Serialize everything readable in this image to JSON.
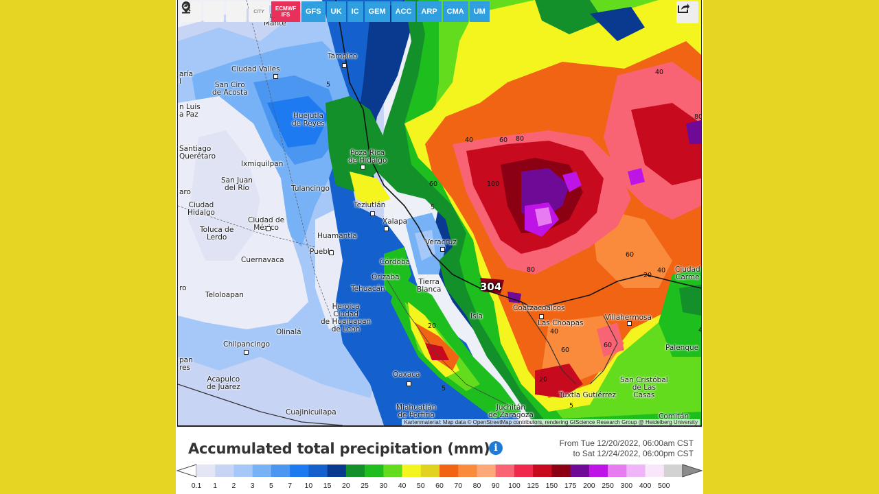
{
  "toolbar": {
    "icons": [
      "refresh-icon",
      "location-pin-icon",
      "zoom-out-icon"
    ],
    "city_toggle": "CITY",
    "models": [
      {
        "label": "ECMWF IFS",
        "active": true
      },
      {
        "label": "GFS"
      },
      {
        "label": "UK"
      },
      {
        "label": "IC"
      },
      {
        "label": "GEM"
      },
      {
        "label": "ACC"
      },
      {
        "label": "ARP"
      },
      {
        "label": "CMA"
      },
      {
        "label": "UM"
      }
    ],
    "share_icon": "share-icon"
  },
  "map": {
    "peak_value": "304",
    "attribution": "Kartenmaterial: Map data © OpenStreetMap contributors, rendering GIScience Research Group @ Heidelberg University",
    "cities": [
      {
        "name": "Ciudad\nMante"
      },
      {
        "name": "Tampico"
      },
      {
        "name": "Ciudad Valles"
      },
      {
        "name": "San Ciro\nde Acosta"
      },
      {
        "name": "n Luis\na Paz"
      },
      {
        "name": "Huejutla\nde Reyes"
      },
      {
        "name": "Santiago\nQuerétaro"
      },
      {
        "name": "Ixmiquilpan"
      },
      {
        "name": "Poza Rica\nde Hidalgo"
      },
      {
        "name": "San Juan\ndel Río"
      },
      {
        "name": "Tulancingo"
      },
      {
        "name": "Teziutlán"
      },
      {
        "name": "Ciudad\nHidalgo"
      },
      {
        "name": "Ciudad de\nMéxico"
      },
      {
        "name": "Xalapa"
      },
      {
        "name": "Toluca de\nLerdo"
      },
      {
        "name": "Huamantla"
      },
      {
        "name": "Veracruz"
      },
      {
        "name": "Puebla"
      },
      {
        "name": "Cuernavaca"
      },
      {
        "name": "Córdoba"
      },
      {
        "name": "Orizaba"
      },
      {
        "name": "Tierra\nBlanca"
      },
      {
        "name": "Tehuacán"
      },
      {
        "name": "Teloloapan"
      },
      {
        "name": "Heroica\nCiudad\nde Huajuapan\nde León"
      },
      {
        "name": "Isla"
      },
      {
        "name": "Coatzacoalcos"
      },
      {
        "name": "Las Choapas"
      },
      {
        "name": "Villahermosa"
      },
      {
        "name": "Ciudad\nCarme"
      },
      {
        "name": "Olinalá"
      },
      {
        "name": "Chilpancingo"
      },
      {
        "name": "Palenque"
      },
      {
        "name": "Oaxaca"
      },
      {
        "name": "Acapulco\nde Juárez"
      },
      {
        "name": "San Cristóbal\nde Las\nCasas"
      },
      {
        "name": "Tuxtla Gutiérrez"
      },
      {
        "name": "Juchitán\nde Zaragoza"
      },
      {
        "name": "Miahuatlán\nde Porfirio"
      },
      {
        "name": "Cuajinicuilapa"
      },
      {
        "name": "Comitán"
      },
      {
        "name": "pan\nres"
      },
      {
        "name": "aría\nl"
      },
      {
        "name": "aro"
      },
      {
        "name": "ro"
      }
    ],
    "contour_labels": [
      "5",
      "40",
      "60",
      "80",
      "100",
      "60",
      "60",
      "80",
      "40",
      "80",
      "20",
      "40",
      "60",
      "20",
      "5",
      "40",
      "60",
      "5",
      "20",
      "5",
      "40"
    ]
  },
  "legend": {
    "title": "Accumulated total precipitation (mm)",
    "info_icon": "info-icon",
    "period_from": "From Tue 12/20/2022, 06:00am CST",
    "period_to": "to Sat 12/24/2022, 06:00pm CST",
    "scale_colors": [
      "#e4e6f5",
      "#c8d4f4",
      "#a6c8f8",
      "#78b2f6",
      "#4a96f0",
      "#1e7af0",
      "#1460cc",
      "#0a3a90",
      "#14902a",
      "#1ebe1e",
      "#64dc1e",
      "#f4f41e",
      "#e0d21e",
      "#f06414",
      "#fa8a3c",
      "#fca878",
      "#f86474",
      "#f0284c",
      "#c80a1e",
      "#8c0014",
      "#6e0a96",
      "#be14e6",
      "#e67cf0",
      "#f0b4f8",
      "#fae6fa",
      "#d2d2d2"
    ],
    "scale_ticks": [
      "0.1",
      "1",
      "2",
      "3",
      "5",
      "7",
      "10",
      "15",
      "20",
      "25",
      "30",
      "40",
      "50",
      "60",
      "70",
      "80",
      "90",
      "100",
      "125",
      "150",
      "175",
      "200",
      "250",
      "300",
      "400",
      "500"
    ]
  }
}
